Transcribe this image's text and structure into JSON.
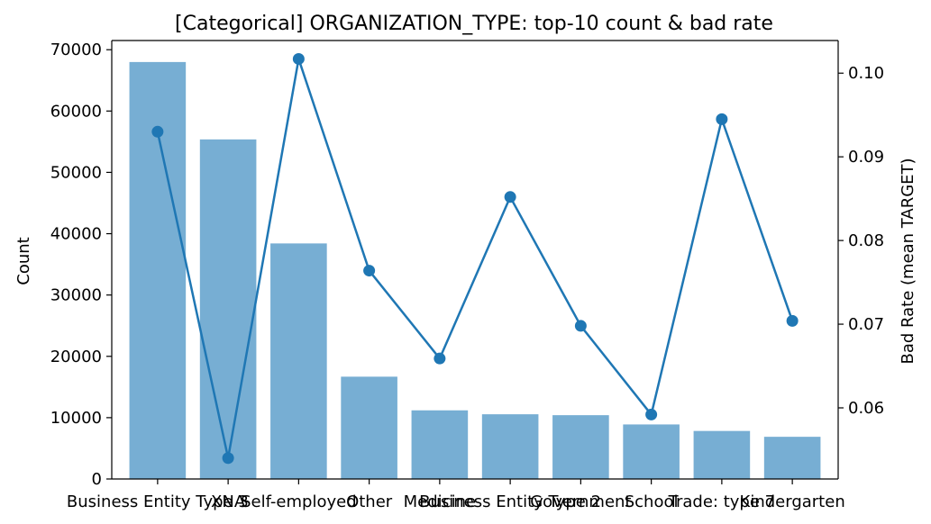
{
  "chart_data": {
    "type": "bar",
    "title": "[Categorical] ORGANIZATION_TYPE: top-10 count & bad rate",
    "xlabel": "",
    "ylabel": "Count",
    "y2label": "Bad Rate (mean TARGET)",
    "categories": [
      "Business Entity Type 3",
      "XNA",
      "Self-employed",
      "Other",
      "Medicine",
      "Business Entity Type 2",
      "Government",
      "School",
      "Trade: type 7",
      "Kindergarten"
    ],
    "series": [
      {
        "kind": "bar",
        "axis": "left",
        "values": [
          67992,
          55374,
          38412,
          16683,
          11193,
          10553,
          10404,
          8893,
          7831,
          6880
        ]
      },
      {
        "kind": "line",
        "axis": "right",
        "values": [
          0.093,
          0.054,
          0.1017,
          0.0764,
          0.0659,
          0.0852,
          0.0698,
          0.0592,
          0.0945,
          0.0704
        ]
      }
    ],
    "ylim": [
      0,
      71500
    ],
    "y2lim": [
      0.0515,
      0.1039
    ],
    "yticks": [
      0,
      10000,
      20000,
      30000,
      40000,
      50000,
      60000,
      70000
    ],
    "y2ticks": [
      0.06,
      0.07,
      0.08,
      0.09,
      0.1
    ],
    "y2tick_labels": [
      "0.06",
      "0.07",
      "0.08",
      "0.09",
      "0.10"
    ],
    "grid": false,
    "colors": {
      "bar": "#77aed3",
      "line": "#1f77b4"
    }
  }
}
